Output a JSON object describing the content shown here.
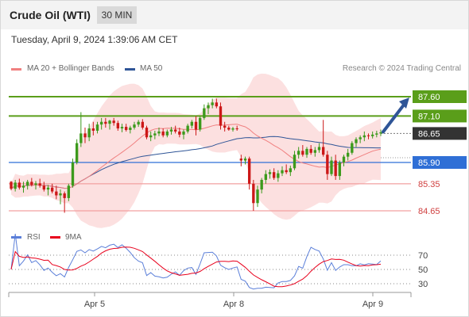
{
  "header": {
    "title": "Crude Oil (WTI)",
    "timeframe": "30 MIN"
  },
  "datetime": "Tuesday, April 9, 2024 1:39:06 AM CET",
  "legend": {
    "ma20": "MA 20 + Bollinger Bands",
    "ma50": "MA 50",
    "ma20_color": "#f08080",
    "ma50_color": "#2f5597"
  },
  "research_credit": "Research © 2024 Trading Central",
  "rsi_legend": {
    "rsi": "RSI",
    "ma9": "9MA",
    "rsi_color": "#5b7fd9",
    "ma9_color": "#e8001c"
  },
  "chart_data": [
    {
      "type": "candlestick",
      "x_ticks": [
        "Apr 5",
        "Apr 8",
        "Apr 9"
      ],
      "y_ticks": [
        87.6,
        87.1,
        86.65,
        85.9,
        85.35,
        84.65
      ],
      "levels": [
        {
          "label": "87.60",
          "value": 87.6,
          "style": "resistance",
          "color": "#5a9e1a"
        },
        {
          "label": "87.10",
          "value": 87.1,
          "style": "resistance",
          "color": "#5a9e1a"
        },
        {
          "label": "86.65",
          "value": 86.65,
          "style": "last-price",
          "color": "#333333"
        },
        {
          "label": "85.90",
          "value": 85.9,
          "style": "pivot",
          "color": "#2f6fd6"
        },
        {
          "label": "85.35",
          "value": 85.35,
          "style": "support",
          "color": "#f2a0a0"
        },
        {
          "label": "84.65",
          "value": 84.65,
          "style": "support",
          "color": "#f2a0a0"
        }
      ],
      "forecast_arrow": {
        "from": 86.65,
        "to": 87.6,
        "direction": "up",
        "color": "#2f5597"
      },
      "candles": [
        [
          85.4,
          85.42,
          85.18,
          85.22
        ],
        [
          85.22,
          85.45,
          85.15,
          85.38
        ],
        [
          85.38,
          85.48,
          85.2,
          85.25
        ],
        [
          85.25,
          85.4,
          85.12,
          85.3
        ],
        [
          85.3,
          85.45,
          85.2,
          85.4
        ],
        [
          85.4,
          85.5,
          85.28,
          85.32
        ],
        [
          85.32,
          85.42,
          85.2,
          85.36
        ],
        [
          85.36,
          85.48,
          85.25,
          85.3
        ],
        [
          85.3,
          85.4,
          85.15,
          85.2
        ],
        [
          85.2,
          85.32,
          85.05,
          85.25
        ],
        [
          85.25,
          85.35,
          85.1,
          85.15
        ],
        [
          85.15,
          85.3,
          84.95,
          85.05
        ],
        [
          85.05,
          85.2,
          84.82,
          85.1
        ],
        [
          85.1,
          85.15,
          84.6,
          84.98
        ],
        [
          84.98,
          85.35,
          84.9,
          85.3
        ],
        [
          85.3,
          86.0,
          85.25,
          85.9
        ],
        [
          85.9,
          86.5,
          85.85,
          86.4
        ],
        [
          86.4,
          87.2,
          86.3,
          86.65
        ],
        [
          86.65,
          86.8,
          86.4,
          86.55
        ],
        [
          86.55,
          86.9,
          86.45,
          86.78
        ],
        [
          86.78,
          86.95,
          86.6,
          86.72
        ],
        [
          86.72,
          86.95,
          86.65,
          86.88
        ],
        [
          86.88,
          87.05,
          86.75,
          86.95
        ],
        [
          86.95,
          87.05,
          86.8,
          86.9
        ],
        [
          86.9,
          87.0,
          86.75,
          86.98
        ],
        [
          86.98,
          87.05,
          86.85,
          86.92
        ],
        [
          86.92,
          86.98,
          86.72,
          86.78
        ],
        [
          86.78,
          86.9,
          86.68,
          86.82
        ],
        [
          86.82,
          86.9,
          86.7,
          86.74
        ],
        [
          86.74,
          86.85,
          86.65,
          86.8
        ],
        [
          86.8,
          86.95,
          86.75,
          86.88
        ],
        [
          86.88,
          87.0,
          86.82,
          86.95
        ],
        [
          86.95,
          87.02,
          86.75,
          86.8
        ],
        [
          86.8,
          86.85,
          86.5,
          86.55
        ],
        [
          86.55,
          86.7,
          86.45,
          86.6
        ],
        [
          86.6,
          86.72,
          86.5,
          86.65
        ],
        [
          86.65,
          86.8,
          86.58,
          86.7
        ],
        [
          86.7,
          86.78,
          86.55,
          86.6
        ],
        [
          86.6,
          86.75,
          86.55,
          86.7
        ],
        [
          86.7,
          86.82,
          86.62,
          86.75
        ],
        [
          86.75,
          86.85,
          86.65,
          86.7
        ],
        [
          86.7,
          86.8,
          86.55,
          86.62
        ],
        [
          86.62,
          86.75,
          86.5,
          86.7
        ],
        [
          86.7,
          86.9,
          86.65,
          86.85
        ],
        [
          86.85,
          87.0,
          86.78,
          86.95
        ],
        [
          86.95,
          87.1,
          86.6,
          86.75
        ],
        [
          86.75,
          87.1,
          86.7,
          87.05
        ],
        [
          87.05,
          87.4,
          87.0,
          87.3
        ],
        [
          87.3,
          87.45,
          87.15,
          87.38
        ],
        [
          87.38,
          87.55,
          87.3,
          87.45
        ],
        [
          87.45,
          87.55,
          87.3,
          87.35
        ],
        [
          87.35,
          87.45,
          86.75,
          86.85
        ],
        [
          86.85,
          86.95,
          86.7,
          86.8
        ],
        [
          86.8,
          86.85,
          86.72,
          86.75
        ],
        [
          86.75,
          86.82,
          86.7,
          86.78
        ],
        [
          86.78,
          86.85,
          86.72,
          86.76
        ],
        [
          86.0,
          86.1,
          85.8,
          85.95
        ],
        [
          85.95,
          86.05,
          85.85,
          86.0
        ],
        [
          86.0,
          86.05,
          85.2,
          85.35
        ],
        [
          85.35,
          85.45,
          84.65,
          84.85
        ],
        [
          84.85,
          85.3,
          84.75,
          85.2
        ],
        [
          85.2,
          85.5,
          85.1,
          85.45
        ],
        [
          85.45,
          85.7,
          85.35,
          85.6
        ],
        [
          85.6,
          85.72,
          85.48,
          85.65
        ],
        [
          85.65,
          85.75,
          85.45,
          85.5
        ],
        [
          85.5,
          85.7,
          85.4,
          85.62
        ],
        [
          85.62,
          85.8,
          85.55,
          85.7
        ],
        [
          85.7,
          85.85,
          85.6,
          85.65
        ],
        [
          85.65,
          85.82,
          85.55,
          85.75
        ],
        [
          85.75,
          86.2,
          85.7,
          86.1
        ],
        [
          86.1,
          86.3,
          86.0,
          86.2
        ],
        [
          86.2,
          86.35,
          86.05,
          86.1
        ],
        [
          86.1,
          86.3,
          86.02,
          86.25
        ],
        [
          86.25,
          86.35,
          86.1,
          86.15
        ],
        [
          86.15,
          86.3,
          86.05,
          86.22
        ],
        [
          86.22,
          86.4,
          86.15,
          86.3
        ],
        [
          86.3,
          87.0,
          86.05,
          86.1
        ],
        [
          86.1,
          86.2,
          85.45,
          85.6
        ],
        [
          85.6,
          86.05,
          85.55,
          85.95
        ],
        [
          85.95,
          86.1,
          85.45,
          85.55
        ],
        [
          85.55,
          85.95,
          85.45,
          85.9
        ],
        [
          85.9,
          86.1,
          85.8,
          86.05
        ],
        [
          86.05,
          86.25,
          85.95,
          86.15
        ],
        [
          86.15,
          86.45,
          86.1,
          86.4
        ],
        [
          86.4,
          86.55,
          86.3,
          86.5
        ],
        [
          86.5,
          86.6,
          86.4,
          86.55
        ],
        [
          86.55,
          86.7,
          86.45,
          86.6
        ],
        [
          86.6,
          86.65,
          86.5,
          86.58
        ],
        [
          86.58,
          86.7,
          86.52,
          86.62
        ],
        [
          86.62,
          86.72,
          86.55,
          86.65
        ],
        [
          86.65,
          86.75,
          86.58,
          86.68
        ]
      ]
    },
    {
      "type": "line",
      "name": "RSI panel",
      "y_ticks": [
        70,
        50,
        30
      ],
      "ylim": [
        15,
        85
      ]
    }
  ]
}
